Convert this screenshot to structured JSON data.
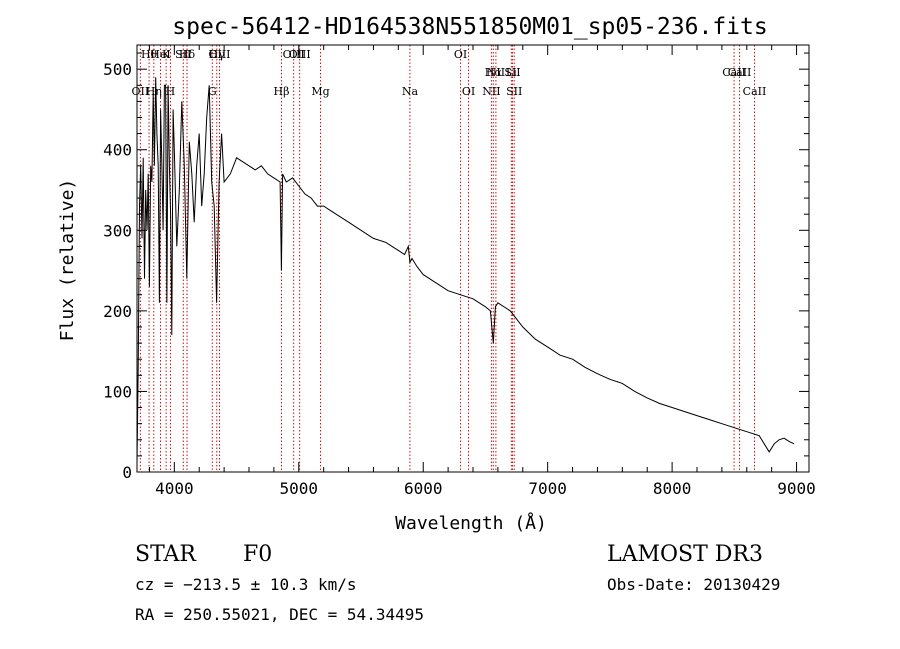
{
  "chart_data": {
    "type": "line",
    "title": "spec-56412-HD164538N551850M01_sp05-236.fits",
    "xlabel": "Wavelength (Å)",
    "ylabel": "Flux (relative)",
    "xlim": [
      3700,
      9100
    ],
    "ylim": [
      0,
      530
    ],
    "xticks": [
      4000,
      5000,
      6000,
      7000,
      8000,
      9000
    ],
    "yticks": [
      0,
      100,
      200,
      300,
      400,
      500
    ],
    "series": [
      {
        "name": "spectrum",
        "x": [
          3700,
          3710,
          3720,
          3730,
          3740,
          3750,
          3760,
          3770,
          3780,
          3790,
          3800,
          3810,
          3820,
          3830,
          3840,
          3850,
          3860,
          3870,
          3880,
          3890,
          3900,
          3910,
          3920,
          3930,
          3940,
          3950,
          3960,
          3970,
          3980,
          3990,
          4000,
          4020,
          4040,
          4060,
          4080,
          4100,
          4120,
          4140,
          4160,
          4180,
          4200,
          4220,
          4240,
          4260,
          4280,
          4300,
          4320,
          4340,
          4360,
          4380,
          4400,
          4450,
          4500,
          4550,
          4600,
          4650,
          4700,
          4750,
          4800,
          4850,
          4860,
          4870,
          4900,
          4950,
          5000,
          5050,
          5100,
          5150,
          5200,
          5250,
          5300,
          5400,
          5500,
          5600,
          5700,
          5800,
          5850,
          5880,
          5893,
          5910,
          5950,
          6000,
          6050,
          6100,
          6200,
          6300,
          6400,
          6500,
          6540,
          6563,
          6580,
          6600,
          6700,
          6800,
          6900,
          7000,
          7100,
          7200,
          7300,
          7400,
          7500,
          7600,
          7700,
          7800,
          7900,
          8000,
          8100,
          8200,
          8300,
          8400,
          8500,
          8600,
          8700,
          8780,
          8820,
          8860,
          8900,
          8940,
          8980
        ],
        "values": [
          10,
          130,
          330,
          380,
          290,
          390,
          240,
          350,
          300,
          370,
          230,
          380,
          360,
          470,
          380,
          490,
          420,
          380,
          210,
          450,
          380,
          300,
          480,
          480,
          210,
          480,
          380,
          320,
          170,
          450,
          400,
          280,
          350,
          460,
          380,
          240,
          410,
          370,
          310,
          380,
          420,
          330,
          370,
          440,
          480,
          360,
          330,
          210,
          360,
          420,
          360,
          370,
          390,
          385,
          380,
          375,
          380,
          370,
          365,
          360,
          250,
          370,
          360,
          365,
          355,
          345,
          340,
          330,
          330,
          325,
          320,
          310,
          300,
          290,
          285,
          275,
          270,
          280,
          260,
          265,
          255,
          245,
          240,
          235,
          225,
          220,
          215,
          205,
          200,
          160,
          205,
          210,
          200,
          180,
          165,
          155,
          145,
          140,
          130,
          122,
          115,
          110,
          100,
          92,
          85,
          80,
          75,
          70,
          65,
          60,
          55,
          50,
          45,
          25,
          35,
          40,
          42,
          38,
          35
        ]
      }
    ],
    "lines": [
      {
        "label": "Hθ",
        "x": 3797
      },
      {
        "label": "K",
        "x": 3934
      },
      {
        "label": "Hδ",
        "x": 4102
      },
      {
        "label": "OIII",
        "x": 4363
      },
      {
        "label": "HeI",
        "x": 3889
      },
      {
        "label": "SII",
        "x": 4072
      },
      {
        "label": "Hγ",
        "x": 4341
      },
      {
        "label": "OIII",
        "x": 4959
      },
      {
        "label": "OIII",
        "x": 5007
      },
      {
        "label": "OI",
        "x": 6300
      },
      {
        "label": "Hα",
        "x": 6563
      },
      {
        "label": "SII",
        "x": 6717
      },
      {
        "label": "NII",
        "x": 6584
      },
      {
        "label": "Li",
        "x": 6708
      },
      {
        "label": "CaII",
        "x": 8542
      },
      {
        "label": "CaII",
        "x": 8498
      },
      {
        "label": "OII",
        "x": 3727
      },
      {
        "label": "Hη",
        "x": 3835
      },
      {
        "label": "H",
        "x": 3969
      },
      {
        "label": "G",
        "x": 4305
      },
      {
        "label": "Hβ",
        "x": 4861
      },
      {
        "label": "Mg",
        "x": 5175
      },
      {
        "label": "Na",
        "x": 5893
      },
      {
        "label": "OI",
        "x": 6364
      },
      {
        "label": "NII",
        "x": 6548
      },
      {
        "label": "SII",
        "x": 6731
      },
      {
        "label": "CaII",
        "x": 8662
      }
    ]
  },
  "info": {
    "class_label": "STAR",
    "subclass": "F0",
    "survey": "LAMOST DR3",
    "cz": "cz = −213.5 ± 10.3 km/s",
    "obs_date": "Obs-Date: 20130429",
    "radec": "RA = 250.55021, DEC =  54.34495"
  }
}
